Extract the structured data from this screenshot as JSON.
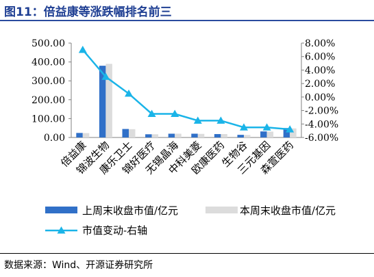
{
  "header": {
    "title": "图11：倍益康等涨跌幅排名前三"
  },
  "footer": {
    "source": "数据来源：Wind、开源证券研究所"
  },
  "colors": {
    "current": "#3070c8",
    "previous": "#dcdcdc",
    "change": "#1ab4e8",
    "title": "#1f3f93"
  },
  "chart_data": {
    "type": "bar",
    "title": "",
    "xlabel": "",
    "ylabel": "",
    "categories": [
      "倍益康",
      "锦波生物",
      "康乐卫士",
      "锦好医疗",
      "无锡晶海",
      "中科美菱",
      "欧康医药",
      "生物谷",
      "三元基因",
      "森萱医药"
    ],
    "ylim": [
      0,
      500
    ],
    "yticks": [
      "500.00",
      "400.00",
      "300.00",
      "200.00",
      "100.00",
      "0.00"
    ],
    "y2lim": [
      -6,
      8
    ],
    "y2ticks": [
      "8.00%",
      "6.00%",
      "4.00%",
      "2.00%",
      "0.00%",
      "-2.00%",
      "-4.00%",
      "-6.00%"
    ],
    "series": [
      {
        "name": "上周末收盘市值/亿元",
        "type": "bar",
        "axis": "left",
        "values": [
          24,
          380,
          45,
          17,
          20,
          20,
          18,
          14,
          32,
          50
        ]
      },
      {
        "name": "本周末收盘市值/亿元",
        "type": "bar",
        "axis": "left",
        "values": [
          23,
          390,
          44,
          17,
          20,
          19,
          18,
          13,
          31,
          48
        ]
      },
      {
        "name": "市值变动-右轴",
        "type": "line",
        "axis": "right",
        "marker": "triangle",
        "values": [
          7.0,
          3.0,
          0.5,
          -2.5,
          -2.5,
          -3.5,
          -3.5,
          -4.5,
          -4.5,
          -4.8
        ]
      }
    ],
    "legend": {
      "position": "bottom"
    },
    "grid": false
  }
}
